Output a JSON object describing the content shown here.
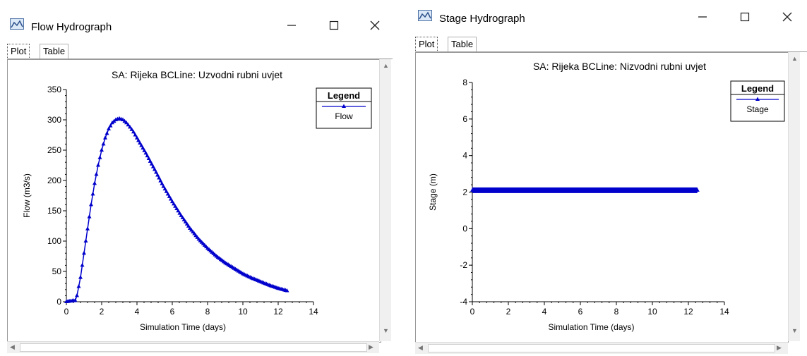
{
  "windows": [
    {
      "title": "Flow Hydrograph",
      "tabs": [
        "Plot",
        "Table"
      ],
      "chart_data": {
        "type": "line",
        "title": "SA: Rijeka BCLine: Uzvodni rubni uvjet",
        "xlabel": "Simulation Time (days)",
        "ylabel": "Flow (m3/s)",
        "xlim": [
          0,
          14
        ],
        "ylim": [
          0,
          350
        ],
        "xticks": [
          0,
          2,
          4,
          6,
          8,
          10,
          12,
          14
        ],
        "yticks": [
          0,
          50,
          100,
          150,
          200,
          250,
          300,
          350
        ],
        "legend": {
          "title": "Legend",
          "position": "top-right",
          "entries": [
            "Flow"
          ]
        },
        "grid": false,
        "series": [
          {
            "name": "Flow",
            "color": "#0000cc",
            "marker": "triangle",
            "x": [
              0,
              0.5,
              0.6,
              0.8,
              1.0,
              1.2,
              1.4,
              1.6,
              1.8,
              2.0,
              2.2,
              2.4,
              2.6,
              2.8,
              3.0,
              3.2,
              3.4,
              3.6,
              3.8,
              4.0,
              4.5,
              5.0,
              5.5,
              6.0,
              6.5,
              7.0,
              7.5,
              8.0,
              8.5,
              9.0,
              9.5,
              10.0,
              10.5,
              11.0,
              11.5,
              12.0,
              12.5
            ],
            "y": [
              0,
              2,
              10,
              40,
              80,
              120,
              160,
              195,
              225,
              250,
              270,
              285,
              295,
              300,
              302,
              300,
              295,
              288,
              280,
              270,
              245,
              218,
              190,
              165,
              142,
              121,
              103,
              88,
              75,
              64,
              55,
              46,
              39,
              33,
              27,
              22,
              18
            ]
          }
        ]
      }
    },
    {
      "title": "Stage Hydrograph",
      "tabs": [
        "Plot",
        "Table"
      ],
      "chart_data": {
        "type": "line",
        "title": "SA: Rijeka BCLine: Nizvodni rubni uvjet",
        "xlabel": "Simulation Time (days)",
        "ylabel": "Stage  (m)",
        "xlim": [
          0,
          14
        ],
        "ylim": [
          -4,
          8
        ],
        "xticks": [
          0,
          2,
          4,
          6,
          8,
          10,
          12,
          14
        ],
        "yticks": [
          -4,
          -2,
          0,
          2,
          4,
          6,
          8
        ],
        "legend": {
          "title": "Legend",
          "position": "top-right",
          "entries": [
            "Stage"
          ]
        },
        "grid": false,
        "series": [
          {
            "name": "Stage",
            "color": "#0000cc",
            "marker": "triangle",
            "x": [
              0,
              12.5
            ],
            "y": [
              2.1,
              2.1
            ]
          }
        ]
      }
    }
  ]
}
